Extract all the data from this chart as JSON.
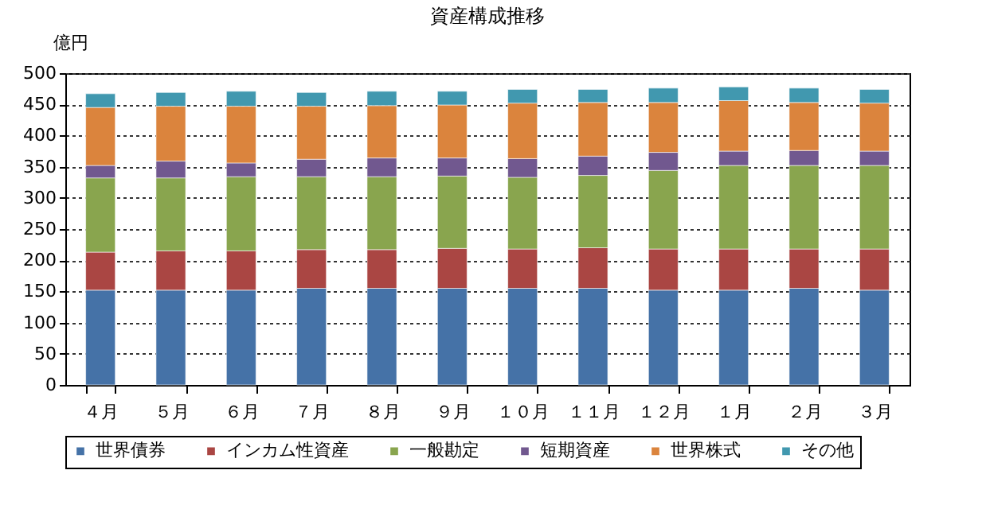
{
  "chart_data": {
    "type": "bar",
    "stacked": true,
    "title": "資産構成推移",
    "ylabel": "億円",
    "categories": [
      "４月",
      "５月",
      "６月",
      "７月",
      "８月",
      "９月",
      "１０月",
      "１１月",
      "１２月",
      "１月",
      "２月",
      "３月"
    ],
    "ylim": [
      0,
      500
    ],
    "yticks": [
      0,
      50,
      100,
      150,
      200,
      250,
      300,
      350,
      400,
      450,
      500
    ],
    "grid": "y",
    "legend": "bottom",
    "series": [
      {
        "name": "世界債券",
        "color": "#4572a7",
        "values": [
          152,
          152,
          152,
          155,
          155,
          155,
          155,
          155,
          152,
          152,
          155,
          152
        ]
      },
      {
        "name": "インカム性資産",
        "color": "#aa4643",
        "values": [
          61,
          63,
          63,
          62,
          62,
          64,
          63,
          65,
          66,
          66,
          63,
          66
        ]
      },
      {
        "name": "一般勘定",
        "color": "#89a54e",
        "values": [
          119,
          117,
          119,
          117,
          117,
          116,
          115,
          116,
          126,
          134,
          134,
          134
        ]
      },
      {
        "name": "短期資産",
        "color": "#71588f",
        "values": [
          20,
          27,
          22,
          28,
          30,
          29,
          30,
          31,
          29,
          23,
          24,
          23
        ]
      },
      {
        "name": "世界株式",
        "color": "#db843d",
        "values": [
          93,
          88,
          91,
          85,
          84,
          85,
          89,
          86,
          80,
          81,
          77,
          77
        ]
      },
      {
        "name": "その他",
        "color": "#4198af",
        "values": [
          22,
          22,
          24,
          22,
          23,
          22,
          22,
          21,
          23,
          22,
          23,
          22
        ]
      }
    ]
  }
}
